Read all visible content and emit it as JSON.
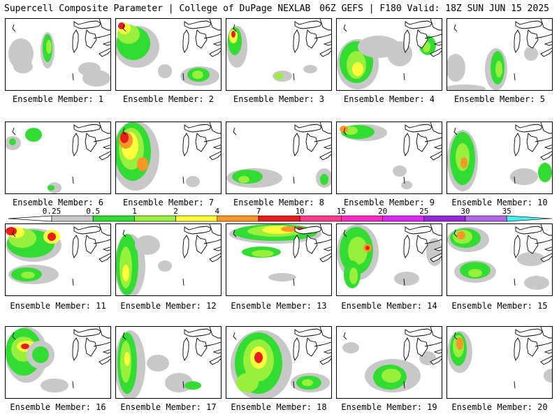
{
  "header": {
    "title": "Supercell Composite Parameter | College of DuPage NEXLAB",
    "valid": "06Z GEFS | F180 Valid: 18Z SUN JUN 15 2025"
  },
  "colorbar": {
    "levels": [
      "0.25",
      "0.5",
      "1",
      "2",
      "4",
      "7",
      "10",
      "15",
      "20",
      "25",
      "30",
      "35"
    ],
    "colors": [
      "#c8c8c8",
      "#32dc32",
      "#96f03c",
      "#ffff3c",
      "#ff9628",
      "#e61e1e",
      "#ff3c8c",
      "#ff28c8",
      "#dc28f0",
      "#9628dc",
      "#b464e6",
      "#46f0f0"
    ]
  },
  "members": [
    {
      "label": "Ensemble Member: 1"
    },
    {
      "label": "Ensemble Member: 2"
    },
    {
      "label": "Ensemble Member: 3"
    },
    {
      "label": "Ensemble Member: 4"
    },
    {
      "label": "Ensemble Member: 5"
    },
    {
      "label": "Ensemble Member: 6"
    },
    {
      "label": "Ensemble Member: 7"
    },
    {
      "label": "Ensemble Member: 8"
    },
    {
      "label": "Ensemble Member: 9"
    },
    {
      "label": "Ensemble Member: 10"
    },
    {
      "label": "Ensemble Member: 11"
    },
    {
      "label": "Ensemble Member: 12"
    },
    {
      "label": "Ensemble Member: 13"
    },
    {
      "label": "Ensemble Member: 14"
    },
    {
      "label": "Ensemble Member: 15"
    },
    {
      "label": "Ensemble Member: 16"
    },
    {
      "label": "Ensemble Member: 17"
    },
    {
      "label": "Ensemble Member: 18"
    },
    {
      "label": "Ensemble Member: 19"
    },
    {
      "label": "Ensemble Member: 20"
    }
  ]
}
